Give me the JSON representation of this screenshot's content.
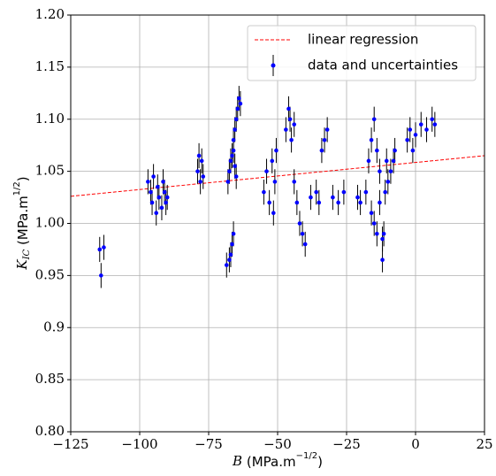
{
  "chart_data": {
    "type": "scatter",
    "xlabel": {
      "symbol": "B",
      "unit": " (MPa.m",
      "exponent": "−1/2",
      "close": ")"
    },
    "ylabel": {
      "symbol": "K",
      "subscript": "IC",
      "unit": " (MPa.m",
      "exponent": "1/2",
      "close": ")"
    },
    "xlim": [
      -125,
      25
    ],
    "ylim": [
      0.8,
      1.2
    ],
    "xticks": [
      {
        "value": -125,
        "label": "−125"
      },
      {
        "value": -100,
        "label": "−100"
      },
      {
        "value": -75,
        "label": "−75"
      },
      {
        "value": -50,
        "label": "−50"
      },
      {
        "value": -25,
        "label": "−25"
      },
      0,
      25
    ],
    "yticks": [
      {
        "value": 0.8,
        "label": "0.80"
      },
      0.85,
      0.9,
      0.95,
      {
        "value": 1.0,
        "label": "1.00"
      },
      1.05,
      {
        "value": 1.1,
        "label": "1.10"
      },
      1.15,
      {
        "value": 1.2,
        "label": "1.20"
      }
    ],
    "grid": true,
    "legend": "upper right",
    "series": [
      {
        "name": "linear regression",
        "kind": "line",
        "color": "#ff0000",
        "x": [
          -125,
          25
        ],
        "values": [
          1.026,
          1.065
        ]
      },
      {
        "name": "data and uncertainties",
        "kind": "errorbar",
        "color": "#0000ff",
        "error_color": "#000000",
        "error": 0.012,
        "x": [
          -114.5,
          -114,
          -113,
          -97,
          -96,
          -95.5,
          -95,
          -94,
          -93.5,
          -93,
          -92,
          -91.5,
          -91,
          -90.5,
          -90,
          -79,
          -78.5,
          -78,
          -77.5,
          -77,
          -68,
          -67.5,
          -67,
          -66.5,
          -66,
          -65.5,
          -65,
          -68.5,
          -67.5,
          -67,
          -66.5,
          -66,
          -66,
          -65.5,
          -65,
          -64.5,
          -64,
          -63.5,
          -55,
          -54,
          -53,
          -52,
          -51.5,
          -51,
          -50.5,
          -47,
          -46,
          -45.5,
          -45,
          -44,
          -44,
          -43,
          -42,
          -41,
          -40,
          -38,
          -36,
          -35,
          -34,
          -33,
          -32,
          -30,
          -28,
          -26,
          -21,
          -20,
          -18,
          -17,
          -16,
          -15,
          -14,
          -13,
          -16,
          -15,
          -14,
          -13,
          -12,
          -12,
          -11.5,
          -11,
          -10.5,
          -10,
          -9,
          -8,
          -7.5,
          -3,
          -2,
          -1,
          0,
          2,
          4,
          6,
          7
        ],
        "values": [
          0.975,
          0.95,
          0.977,
          1.04,
          1.03,
          1.02,
          1.045,
          1.01,
          1.035,
          1.025,
          1.015,
          1.04,
          1.03,
          1.02,
          1.025,
          1.05,
          1.065,
          1.04,
          1.06,
          1.045,
          1.04,
          1.05,
          1.06,
          1.065,
          1.07,
          1.055,
          1.045,
          0.96,
          0.965,
          0.97,
          0.98,
          0.99,
          1.08,
          1.09,
          1.1,
          1.11,
          1.12,
          1.115,
          1.03,
          1.05,
          1.02,
          1.06,
          1.01,
          1.04,
          1.07,
          1.09,
          1.11,
          1.1,
          1.08,
          1.095,
          1.04,
          1.02,
          1.0,
          0.99,
          0.98,
          1.025,
          1.03,
          1.02,
          1.07,
          1.08,
          1.09,
          1.025,
          1.02,
          1.03,
          1.025,
          1.02,
          1.03,
          1.06,
          1.08,
          1.1,
          1.07,
          1.05,
          1.01,
          1.0,
          0.99,
          1.02,
          0.985,
          0.965,
          0.99,
          1.03,
          1.06,
          1.04,
          1.05,
          1.06,
          1.07,
          1.08,
          1.09,
          1.07,
          1.085,
          1.095,
          1.09,
          1.1,
          1.095
        ]
      }
    ]
  }
}
